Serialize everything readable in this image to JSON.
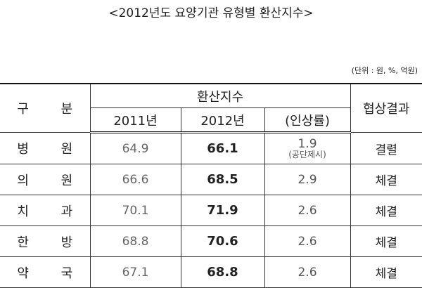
{
  "title": "<2012년도 요양기관 유형별 환산지수>",
  "unit": "(단위 : 원, %, 억원)",
  "table": {
    "header": {
      "category": "구 분",
      "group": "환산지수",
      "col_2011": "2011년",
      "col_2012": "2012년",
      "col_rate": "(인상률)",
      "result": "협상결과"
    },
    "rows": [
      {
        "name": "병 원",
        "v2011": 64.9,
        "v2012": 66.1,
        "rate": 1.9,
        "rate_note": "(공단제시)",
        "result": "결렬"
      },
      {
        "name": "의 원",
        "v2011": 66.6,
        "v2012": 68.5,
        "rate": 2.9,
        "result": "체결"
      },
      {
        "name": "치 과",
        "v2011": 70.1,
        "v2012": 71.9,
        "rate": 2.6,
        "result": "체결"
      },
      {
        "name": "한 방",
        "v2011": 68.8,
        "v2012": 70.6,
        "rate": 2.6,
        "result": "체결"
      },
      {
        "name": "약 국",
        "v2011": 67.1,
        "v2012": 68.8,
        "rate": 2.6,
        "result": "체결"
      }
    ]
  }
}
